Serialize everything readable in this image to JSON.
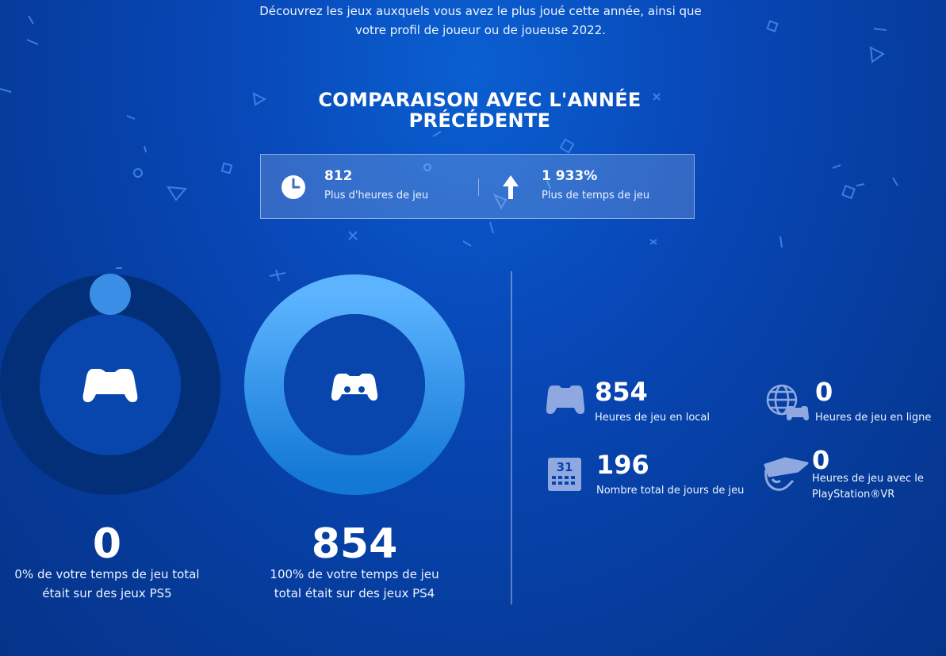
{
  "intro": {
    "line1": "Découvrez les jeux auxquels vous avez le plus joué cette année, ainsi que",
    "line2": "votre profil de joueur ou de joueuse 2022."
  },
  "comparison": {
    "title_line1": "COMPARAISON AVEC L'ANNÉE",
    "title_line2": "PRÉCÉDENTE",
    "items": [
      {
        "value": "812",
        "label": "Plus d'heures de jeu",
        "icon": "clock-icon"
      },
      {
        "value": "1 933%",
        "label": "Plus de temps de jeu",
        "icon": "arrow-up-icon"
      }
    ]
  },
  "platforms": [
    {
      "value": "0",
      "caption_line1": "0% de votre temps de jeu total",
      "caption_line2": "était sur des jeux PS5",
      "percent": 0,
      "icon": "dualsense-controller-icon"
    },
    {
      "value": "854",
      "caption_line1": "100% de votre temps de jeu",
      "caption_line2": "total était sur des jeux PS4",
      "percent": 100,
      "icon": "dualshock-controller-icon"
    }
  ],
  "stats": [
    {
      "value": "854",
      "label": "Heures de jeu en local",
      "icon": "controller-icon"
    },
    {
      "value": "0",
      "label": "Heures de jeu en ligne",
      "icon": "globe-controller-icon"
    },
    {
      "value": "196",
      "label": "Nombre total de jours de jeu",
      "icon": "calendar-icon",
      "icon_text": "31"
    },
    {
      "value": "0",
      "label_line1": "Heures de jeu avec le",
      "label_line2": "PlayStation®VR",
      "icon": "vr-headset-icon"
    }
  ],
  "colors": {
    "background": "#0848b8",
    "ps5_ring": "#032f78",
    "ps5_knob": "#3a8ee6",
    "ps4_ring_start": "#1479d6",
    "ps4_ring_end": "#5cb4ff",
    "donut_center": "#0845ac"
  }
}
